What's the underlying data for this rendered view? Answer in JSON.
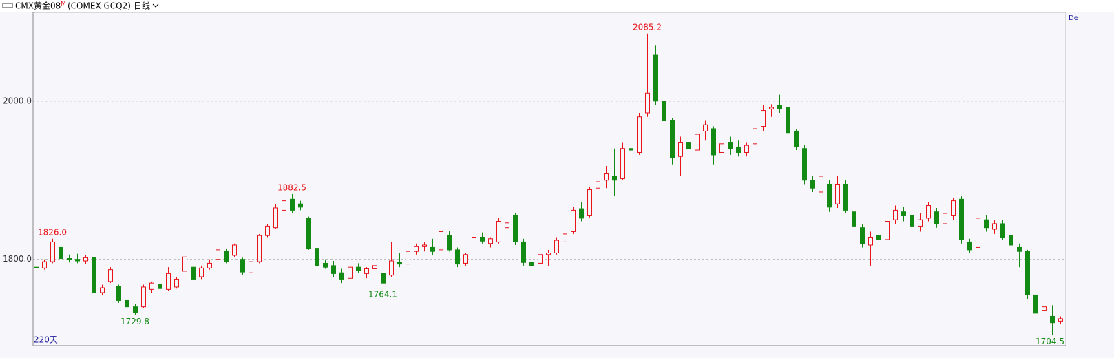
{
  "chart_data": {
    "type": "candlestick",
    "title": "CMX黄金08",
    "title_mark": "M",
    "subtitle": "(COMEX GCQ2)",
    "period": "日线",
    "footer": "220天",
    "corner_label": "De",
    "up_color": "#e8141a",
    "down_color": "#138a13",
    "ylim": [
      1691,
      2112
    ],
    "yticks": [
      {
        "value": 1800,
        "label": "1800.0"
      },
      {
        "value": 2000,
        "label": "2000.0"
      }
    ],
    "grid": true,
    "annotations": [
      {
        "value": 1826,
        "label": "1826.0"
      },
      {
        "value": 1729.8,
        "label": "1729.8"
      },
      {
        "value": 1882.5,
        "label": "1882.5"
      },
      {
        "value": 1764.1,
        "label": "1764.1"
      },
      {
        "value": 2085.2,
        "label": "2085.2"
      },
      {
        "value": 1704.5,
        "label": "1704.5"
      }
    ],
    "ohlc": [
      [
        1790,
        1794,
        1786,
        1789
      ],
      [
        1789,
        1800,
        1787,
        1797
      ],
      [
        1797,
        1826,
        1795,
        1822
      ],
      [
        1815,
        1818,
        1798,
        1801
      ],
      [
        1801,
        1806,
        1796,
        1800
      ],
      [
        1800,
        1807,
        1795,
        1798
      ],
      [
        1798,
        1805,
        1794,
        1802
      ],
      [
        1802,
        1803,
        1755,
        1758
      ],
      [
        1758,
        1768,
        1755,
        1764
      ],
      [
        1772,
        1790,
        1770,
        1787
      ],
      [
        1766,
        1768,
        1745,
        1748
      ],
      [
        1748,
        1752,
        1735,
        1740
      ],
      [
        1740,
        1744,
        1729.8,
        1733
      ],
      [
        1740,
        1768,
        1738,
        1765
      ],
      [
        1762,
        1772,
        1758,
        1770
      ],
      [
        1768,
        1772,
        1760,
        1763
      ],
      [
        1762,
        1790,
        1760,
        1782
      ],
      [
        1765,
        1778,
        1763,
        1775
      ],
      [
        1785,
        1805,
        1783,
        1803
      ],
      [
        1790,
        1793,
        1772,
        1775
      ],
      [
        1778,
        1792,
        1775,
        1789
      ],
      [
        1789,
        1800,
        1787,
        1795
      ],
      [
        1800,
        1818,
        1798,
        1812
      ],
      [
        1810,
        1813,
        1795,
        1797
      ],
      [
        1805,
        1820,
        1803,
        1818
      ],
      [
        1800,
        1802,
        1780,
        1784
      ],
      [
        1783,
        1800,
        1770,
        1797
      ],
      [
        1797,
        1832,
        1795,
        1830
      ],
      [
        1830,
        1845,
        1828,
        1842
      ],
      [
        1840,
        1870,
        1838,
        1865
      ],
      [
        1862,
        1878,
        1858,
        1874
      ],
      [
        1876,
        1882.5,
        1858,
        1862
      ],
      [
        1870,
        1874,
        1862,
        1866
      ],
      [
        1852,
        1854,
        1812,
        1814
      ],
      [
        1814,
        1816,
        1788,
        1792
      ],
      [
        1795,
        1800,
        1788,
        1790
      ],
      [
        1792,
        1798,
        1778,
        1782
      ],
      [
        1783,
        1788,
        1770,
        1775
      ],
      [
        1776,
        1792,
        1774,
        1790
      ],
      [
        1790,
        1795,
        1783,
        1786
      ],
      [
        1782,
        1790,
        1776,
        1788
      ],
      [
        1788,
        1796,
        1785,
        1792
      ],
      [
        1782,
        1785,
        1764.1,
        1770
      ],
      [
        1780,
        1822,
        1778,
        1798
      ],
      [
        1796,
        1808,
        1790,
        1794
      ],
      [
        1794,
        1812,
        1792,
        1810
      ],
      [
        1810,
        1820,
        1806,
        1816
      ],
      [
        1816,
        1822,
        1810,
        1818
      ],
      [
        1815,
        1826,
        1805,
        1810
      ],
      [
        1812,
        1838,
        1808,
        1835
      ],
      [
        1830,
        1836,
        1810,
        1812
      ],
      [
        1812,
        1815,
        1790,
        1794
      ],
      [
        1795,
        1808,
        1792,
        1806
      ],
      [
        1808,
        1832,
        1806,
        1828
      ],
      [
        1828,
        1834,
        1820,
        1823
      ],
      [
        1820,
        1828,
        1815,
        1826
      ],
      [
        1822,
        1852,
        1820,
        1848
      ],
      [
        1840,
        1850,
        1838,
        1846
      ],
      [
        1855,
        1858,
        1818,
        1822
      ],
      [
        1822,
        1826,
        1792,
        1796
      ],
      [
        1796,
        1800,
        1788,
        1792
      ],
      [
        1795,
        1810,
        1793,
        1806
      ],
      [
        1806,
        1812,
        1792,
        1808
      ],
      [
        1808,
        1828,
        1806,
        1824
      ],
      [
        1822,
        1840,
        1818,
        1832
      ],
      [
        1835,
        1866,
        1832,
        1862
      ],
      [
        1864,
        1872,
        1848,
        1852
      ],
      [
        1855,
        1892,
        1853,
        1888
      ],
      [
        1890,
        1905,
        1884,
        1898
      ],
      [
        1900,
        1918,
        1890,
        1908
      ],
      [
        1905,
        1940,
        1880,
        1900
      ],
      [
        1902,
        1948,
        1900,
        1940
      ],
      [
        1940,
        1945,
        1930,
        1938
      ],
      [
        1935,
        1985,
        1932,
        1980
      ],
      [
        1985,
        2085.2,
        1980,
        2010
      ],
      [
        2058,
        2070,
        1995,
        2000
      ],
      [
        2000,
        2010,
        1965,
        1975
      ],
      [
        1975,
        1978,
        1920,
        1928
      ],
      [
        1930,
        1955,
        1905,
        1948
      ],
      [
        1948,
        1952,
        1935,
        1940
      ],
      [
        1938,
        1962,
        1930,
        1958
      ],
      [
        1962,
        1975,
        1950,
        1970
      ],
      [
        1965,
        1968,
        1920,
        1932
      ],
      [
        1935,
        1950,
        1930,
        1946
      ],
      [
        1948,
        1955,
        1932,
        1940
      ],
      [
        1942,
        1950,
        1930,
        1935
      ],
      [
        1935,
        1948,
        1930,
        1944
      ],
      [
        1946,
        1970,
        1940,
        1965
      ],
      [
        1968,
        1995,
        1962,
        1988
      ],
      [
        1990,
        1996,
        1980,
        1992
      ],
      [
        1995,
        2008,
        1985,
        1990
      ],
      [
        1992,
        1994,
        1955,
        1960
      ],
      [
        1962,
        1964,
        1938,
        1942
      ],
      [
        1940,
        1945,
        1895,
        1900
      ],
      [
        1900,
        1905,
        1885,
        1890
      ],
      [
        1885,
        1910,
        1880,
        1905
      ],
      [
        1895,
        1900,
        1860,
        1866
      ],
      [
        1870,
        1905,
        1865,
        1895
      ],
      [
        1895,
        1900,
        1858,
        1862
      ],
      [
        1860,
        1864,
        1838,
        1842
      ],
      [
        1840,
        1845,
        1815,
        1820
      ],
      [
        1818,
        1835,
        1792,
        1828
      ],
      [
        1830,
        1838,
        1815,
        1825
      ],
      [
        1825,
        1852,
        1822,
        1848
      ],
      [
        1850,
        1868,
        1845,
        1862
      ],
      [
        1860,
        1866,
        1848,
        1855
      ],
      [
        1855,
        1860,
        1838,
        1842
      ],
      [
        1842,
        1858,
        1835,
        1850
      ],
      [
        1852,
        1872,
        1848,
        1868
      ],
      [
        1860,
        1865,
        1840,
        1845
      ],
      [
        1845,
        1862,
        1842,
        1858
      ],
      [
        1855,
        1878,
        1850,
        1874
      ],
      [
        1876,
        1880,
        1820,
        1825
      ],
      [
        1822,
        1826,
        1808,
        1812
      ],
      [
        1815,
        1858,
        1812,
        1852
      ],
      [
        1850,
        1856,
        1835,
        1840
      ],
      [
        1838,
        1850,
        1832,
        1845
      ],
      [
        1845,
        1850,
        1825,
        1828
      ],
      [
        1830,
        1835,
        1815,
        1818
      ],
      [
        1815,
        1820,
        1790,
        1810
      ],
      [
        1810,
        1812,
        1750,
        1755
      ],
      [
        1755,
        1758,
        1728,
        1732
      ],
      [
        1735,
        1745,
        1726,
        1740
      ],
      [
        1728,
        1742,
        1704.5,
        1720
      ],
      [
        1722,
        1728,
        1718,
        1725
      ]
    ]
  }
}
